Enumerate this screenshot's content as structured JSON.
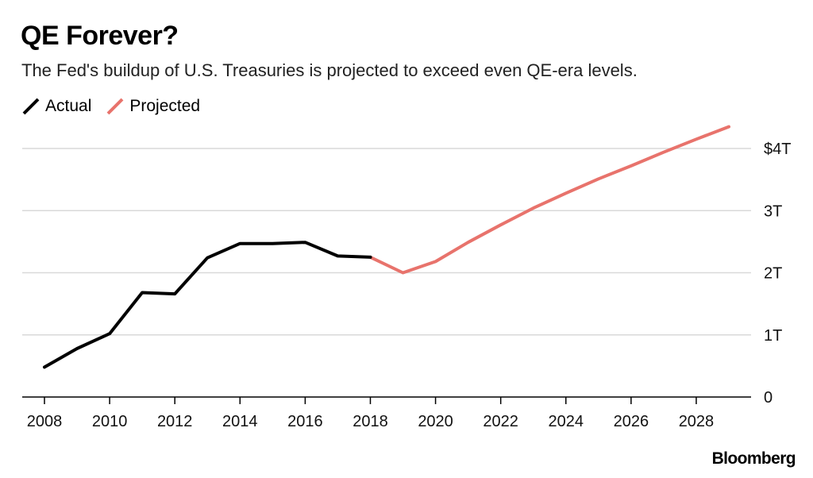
{
  "title": "QE Forever?",
  "subtitle": "The Fed's buildup of U.S. Treasuries is projected to exceed even QE-era levels.",
  "source_logo": "Bloomberg",
  "colors": {
    "actual": "#000000",
    "projected": "#e8736c",
    "grid": "#d9d9d9",
    "axis": "#000000"
  },
  "chart_data": {
    "type": "line",
    "title": "QE Forever?",
    "subtitle": "The Fed's buildup of U.S. Treasuries is projected to exceed even QE-era levels.",
    "xlabel": "",
    "ylabel": "",
    "xlim": [
      2008,
      2029
    ],
    "ylim": [
      0,
      4
    ],
    "grid": true,
    "legend_position": "top-left",
    "x_ticks": [
      2008,
      2010,
      2012,
      2014,
      2016,
      2018,
      2020,
      2022,
      2024,
      2026,
      2028
    ],
    "y_ticks": [
      {
        "value": 0,
        "label": "0"
      },
      {
        "value": 1,
        "label": "1T"
      },
      {
        "value": 2,
        "label": "2T"
      },
      {
        "value": 3,
        "label": "3T"
      },
      {
        "value": 4,
        "label": "$4T"
      }
    ],
    "series": [
      {
        "name": "Actual",
        "color": "#000000",
        "x": [
          2008,
          2009,
          2010,
          2011,
          2012,
          2013,
          2014,
          2015,
          2016,
          2017,
          2018
        ],
        "y": [
          0.48,
          0.78,
          1.02,
          1.68,
          1.66,
          2.24,
          2.47,
          2.47,
          2.49,
          2.27,
          2.25
        ]
      },
      {
        "name": "Projected",
        "color": "#e8736c",
        "x": [
          2018,
          2019,
          2020,
          2021,
          2022,
          2023,
          2024,
          2025,
          2026,
          2027,
          2028,
          2029
        ],
        "y": [
          2.25,
          2.0,
          2.18,
          2.49,
          2.77,
          3.04,
          3.28,
          3.51,
          3.72,
          3.94,
          4.15,
          4.35
        ]
      }
    ]
  }
}
